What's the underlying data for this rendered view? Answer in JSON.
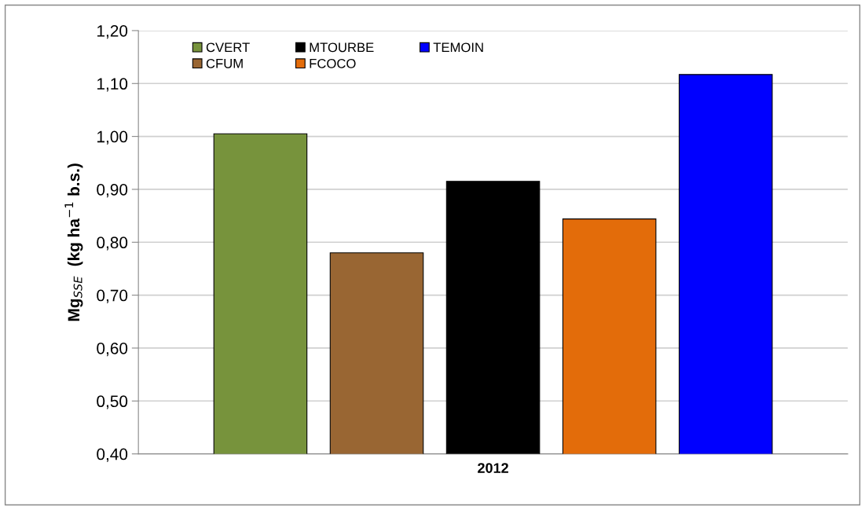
{
  "chart_data": {
    "type": "bar",
    "categories": [
      "2012"
    ],
    "ylabel": "Mg$_{SSE}$  (kg ha$^{−1}$ b.s.)",
    "series": [
      {
        "name": "CVERT",
        "color": "#77933c",
        "values": [
          1.005
        ]
      },
      {
        "name": "CFUM",
        "color": "#996633",
        "values": [
          0.78
        ]
      },
      {
        "name": "MTOURBE",
        "color": "#000000",
        "values": [
          0.915
        ]
      },
      {
        "name": "FCOCO",
        "color": "#e36c0a",
        "values": [
          0.844
        ]
      },
      {
        "name": "TEMOIN",
        "color": "#0000ff",
        "values": [
          1.117
        ]
      }
    ],
    "ylim": [
      0.4,
      1.2
    ],
    "yticks": [
      {
        "value": 0.4,
        "label": "0,40"
      },
      {
        "value": 0.5,
        "label": "0,50"
      },
      {
        "value": 0.6,
        "label": "0,60"
      },
      {
        "value": 0.7,
        "label": "0,70"
      },
      {
        "value": 0.8,
        "label": "0,80"
      },
      {
        "value": 0.9,
        "label": "0,90"
      },
      {
        "value": 1.0,
        "label": "1,00"
      },
      {
        "value": 1.1,
        "label": "1,10"
      },
      {
        "value": 1.2,
        "label": "1,20"
      }
    ],
    "grid": "y",
    "legend": "top left"
  }
}
